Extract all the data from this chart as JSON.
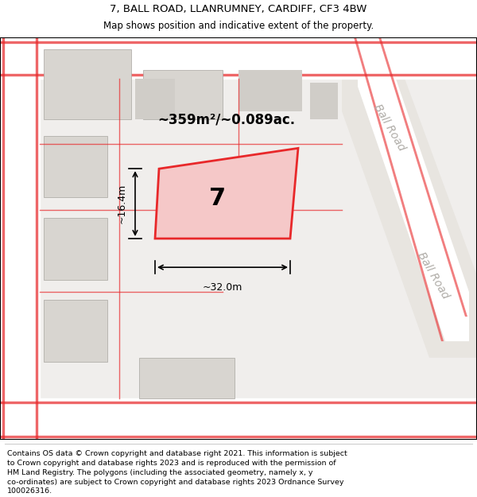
{
  "title_line1": "7, BALL ROAD, LLANRUMNEY, CARDIFF, CF3 4BW",
  "title_line2": "Map shows position and indicative extent of the property.",
  "footer_text": "Contains OS data © Crown copyright and database right 2021. This information is subject to Crown copyright and database rights 2023 and is reproduced with the permission of HM Land Registry. The polygons (including the associated geometry, namely x, y co-ordinates) are subject to Crown copyright and database rights 2023 Ordnance Survey 100026316.",
  "area_text": "~359m²/~0.089ac.",
  "plot_number": "7",
  "dim_width": "~32.0m",
  "dim_height": "~16.4m",
  "ball_road_label": "Ball Road",
  "ball_road_label2": "Ball Road",
  "bg_color": "#f0eeec",
  "map_bg_color": "#f0eeec",
  "road_color": "#ffffff",
  "block_fill": "#d8d5d0",
  "highlight_fill": "#f5c8c8",
  "highlight_edge": "#e8282a",
  "line_color": "#e8282a",
  "gray_block_fill": "#c8c5c0"
}
